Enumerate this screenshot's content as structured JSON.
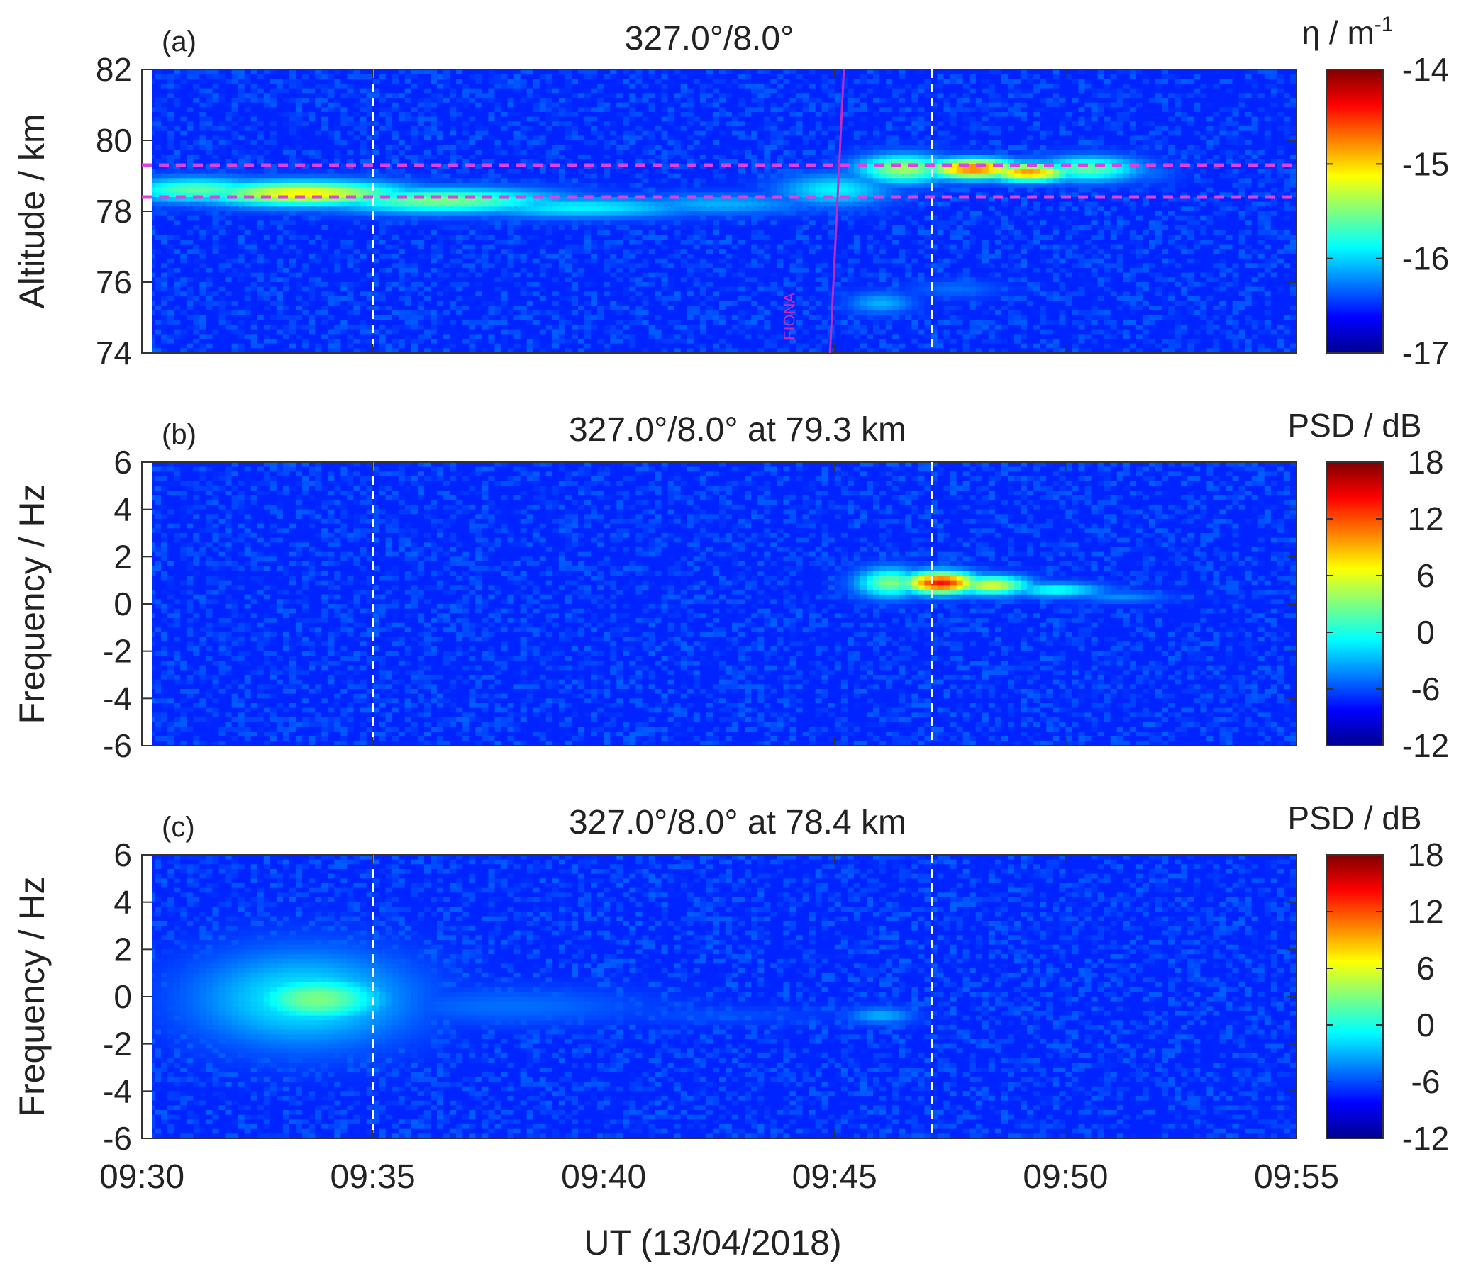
{
  "x_axis": {
    "label": "UT (13/04/2018)",
    "ticks": [
      "09:30",
      "09:35",
      "09:40",
      "09:45",
      "09:50",
      "09:55"
    ],
    "tick_minutes": [
      0,
      5,
      10,
      15,
      20,
      25
    ],
    "range_minutes": [
      0,
      25
    ]
  },
  "chart_data": [
    {
      "type": "heatmap",
      "panel_label": "(a)",
      "title": "327.0°/8.0°",
      "xlabel": "UT (13/04/2018)",
      "ylabel": "Altitude / km",
      "ylabel_text": "Altitude / km",
      "ylim": [
        74,
        82
      ],
      "yticks": [
        74,
        76,
        78,
        80,
        82
      ],
      "ytick_labels": [
        "74",
        "76",
        "78",
        "80",
        "82"
      ],
      "colorbar": {
        "label": "η / m⁻¹",
        "label_main": "η / m",
        "label_sup": "-1",
        "range": [
          -17,
          -14
        ],
        "ticks": [
          -17,
          -16,
          -15,
          -14
        ],
        "tick_labels": [
          "-17",
          "-16",
          "-15",
          "-14"
        ]
      },
      "dashed_vertical_lines_minutes": [
        5,
        17.1
      ],
      "dashed_horizontal_lines": [
        79.3,
        78.4
      ],
      "horizontal_line_color": "#e040e0",
      "annotation": {
        "text": "FIONA",
        "line_minutes": [
          14.9,
          15.2
        ],
        "color": "#c02cc0"
      },
      "features": [
        {
          "t": 1.2,
          "y": 78.6,
          "v": -15.6,
          "st": 1.6,
          "sy": 0.35
        },
        {
          "t": 3.5,
          "y": 78.5,
          "v": -15.1,
          "st": 2.2,
          "sy": 0.35
        },
        {
          "t": 6.5,
          "y": 78.3,
          "v": -15.5,
          "st": 2.5,
          "sy": 0.35
        },
        {
          "t": 9.5,
          "y": 78.1,
          "v": -15.9,
          "st": 2.5,
          "sy": 0.3
        },
        {
          "t": 12.5,
          "y": 78.2,
          "v": -16.1,
          "st": 2.0,
          "sy": 0.3
        },
        {
          "t": 15.0,
          "y": 78.6,
          "v": -15.9,
          "st": 1.2,
          "sy": 0.45
        },
        {
          "t": 16.5,
          "y": 79.2,
          "v": -15.4,
          "st": 1.0,
          "sy": 0.4
        },
        {
          "t": 18.0,
          "y": 79.2,
          "v": -14.7,
          "st": 1.0,
          "sy": 0.28
        },
        {
          "t": 19.2,
          "y": 79.1,
          "v": -14.8,
          "st": 0.9,
          "sy": 0.25
        },
        {
          "t": 20.5,
          "y": 79.2,
          "v": -15.6,
          "st": 1.1,
          "sy": 0.35
        },
        {
          "t": 21.8,
          "y": 79.1,
          "v": -16.3,
          "st": 0.6,
          "sy": 0.3
        },
        {
          "t": 16.0,
          "y": 75.4,
          "v": -16.1,
          "st": 0.7,
          "sy": 0.3
        },
        {
          "t": 17.6,
          "y": 75.8,
          "v": -16.3,
          "st": 1.0,
          "sy": 0.25
        },
        {
          "t": 18.8,
          "y": 75.8,
          "v": -16.5,
          "st": 0.8,
          "sy": 0.22
        }
      ]
    },
    {
      "type": "heatmap",
      "panel_label": "(b)",
      "title": "327.0°/8.0° at 79.3 km",
      "xlabel": "UT (13/04/2018)",
      "ylabel": "Frequency / Hz",
      "ylim": [
        -6,
        6
      ],
      "yticks": [
        -6,
        -4,
        -2,
        0,
        2,
        4,
        6
      ],
      "ytick_labels": [
        "-6",
        "-4",
        "-2",
        "0",
        "2",
        "4",
        "6"
      ],
      "colorbar": {
        "label": "PSD / dB",
        "range": [
          -12,
          18
        ],
        "ticks": [
          -12,
          -6,
          0,
          6,
          12,
          18
        ],
        "tick_labels": [
          "-12",
          "-6",
          "0",
          "6",
          "12",
          "18"
        ]
      },
      "dashed_vertical_lines_minutes": [
        5,
        17.1
      ],
      "features": [
        {
          "t": 16.2,
          "y": 0.9,
          "v": 3,
          "st": 0.7,
          "sy": 0.6
        },
        {
          "t": 17.3,
          "y": 0.9,
          "v": 14,
          "st": 0.8,
          "sy": 0.45
        },
        {
          "t": 18.4,
          "y": 0.8,
          "v": 6,
          "st": 0.8,
          "sy": 0.4
        },
        {
          "t": 19.8,
          "y": 0.6,
          "v": 0,
          "st": 1.0,
          "sy": 0.3
        },
        {
          "t": 21.2,
          "y": 0.3,
          "v": -4,
          "st": 1.0,
          "sy": 0.25
        }
      ]
    },
    {
      "type": "heatmap",
      "panel_label": "(c)",
      "title": "327.0°/8.0° at 78.4 km",
      "xlabel": "UT (13/04/2018)",
      "ylabel": "Frequency / Hz",
      "ylim": [
        -6,
        6
      ],
      "yticks": [
        -6,
        -4,
        -2,
        0,
        2,
        4,
        6
      ],
      "ytick_labels": [
        "-6",
        "-4",
        "-2",
        "0",
        "2",
        "4",
        "6"
      ],
      "colorbar": {
        "label": "PSD / dB",
        "range": [
          -12,
          18
        ],
        "ticks": [
          -12,
          -6,
          0,
          6,
          12,
          18
        ],
        "tick_labels": [
          "-12",
          "-6",
          "0",
          "6",
          "12",
          "18"
        ]
      },
      "dashed_vertical_lines_minutes": [
        5,
        17.1
      ],
      "features": [
        {
          "t": 3.5,
          "y": -0.1,
          "v": -1,
          "st": 2.3,
          "sy": 2.0
        },
        {
          "t": 3.8,
          "y": -0.1,
          "v": 3,
          "st": 1.5,
          "sy": 1.0
        },
        {
          "t": 8.0,
          "y": -0.4,
          "v": -5,
          "st": 3.0,
          "sy": 0.8
        },
        {
          "t": 12.5,
          "y": -0.8,
          "v": -6,
          "st": 2.5,
          "sy": 0.4
        },
        {
          "t": 16.0,
          "y": -0.8,
          "v": -3,
          "st": 0.7,
          "sy": 0.35
        }
      ]
    }
  ]
}
